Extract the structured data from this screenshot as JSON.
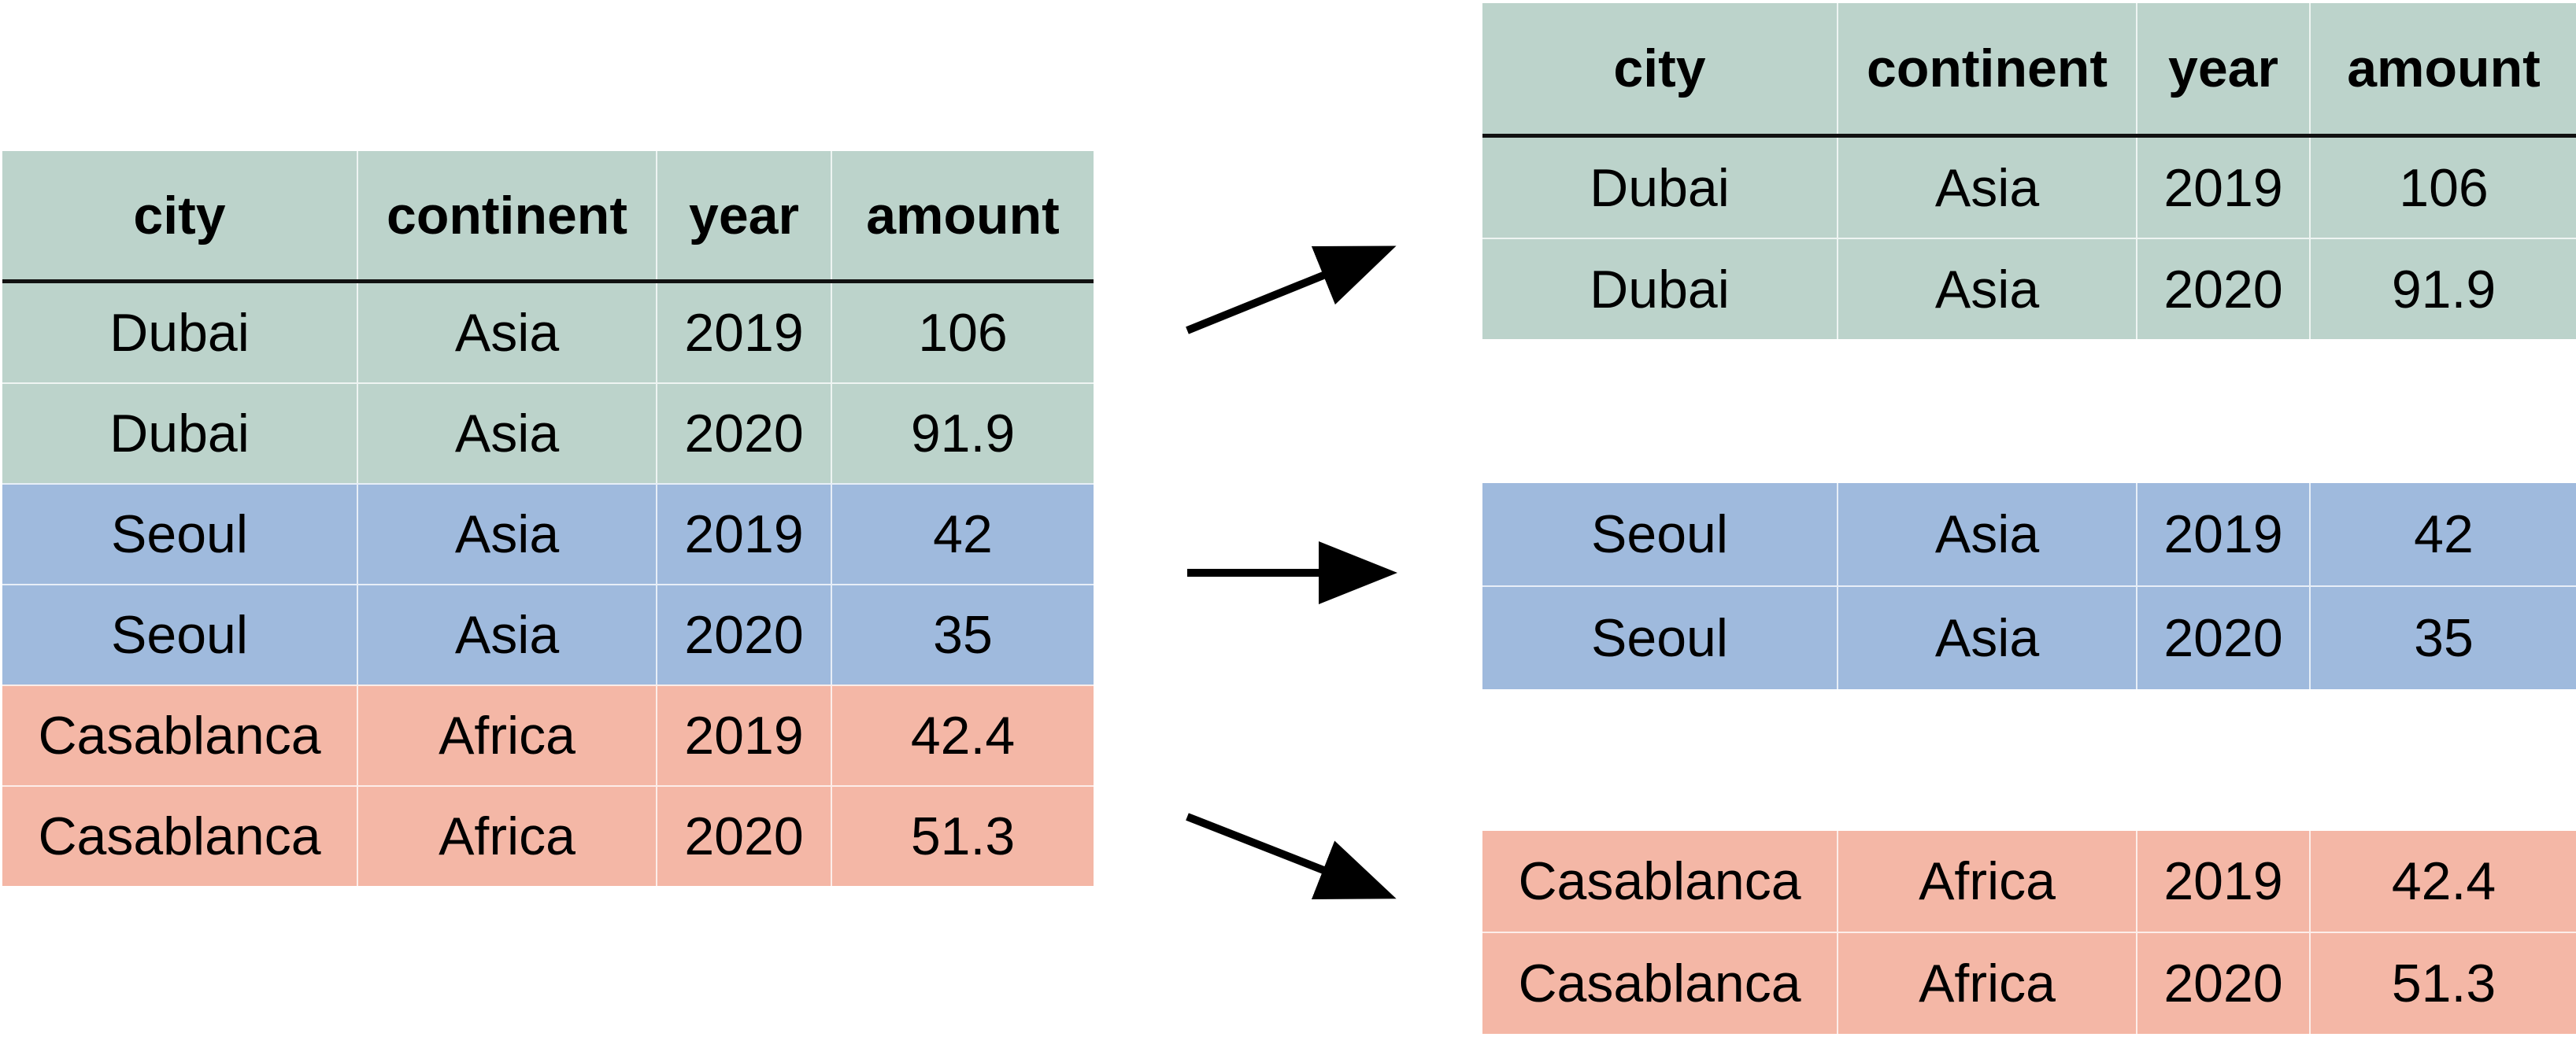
{
  "columns": [
    "city",
    "continent",
    "year",
    "amount"
  ],
  "source_table": {
    "rows": [
      {
        "group": "asia",
        "cells": [
          "Dubai",
          "Asia",
          "2019",
          "106"
        ]
      },
      {
        "group": "asia",
        "cells": [
          "Dubai",
          "Asia",
          "2020",
          "91.9"
        ]
      },
      {
        "group": "seoul",
        "cells": [
          "Seoul",
          "Asia",
          "2019",
          "42"
        ]
      },
      {
        "group": "seoul",
        "cells": [
          "Seoul",
          "Asia",
          "2020",
          "35"
        ]
      },
      {
        "group": "africa",
        "cells": [
          "Casablanca",
          "Africa",
          "2019",
          "42.4"
        ]
      },
      {
        "group": "africa",
        "cells": [
          "Casablanca",
          "Africa",
          "2020",
          "51.3"
        ]
      }
    ]
  },
  "split_tables": [
    {
      "group": "asia",
      "show_header": true,
      "rows": [
        [
          "Dubai",
          "Asia",
          "2019",
          "106"
        ],
        [
          "Dubai",
          "Asia",
          "2020",
          "91.9"
        ]
      ]
    },
    {
      "group": "seoul",
      "show_header": false,
      "rows": [
        [
          "Seoul",
          "Asia",
          "2019",
          "42"
        ],
        [
          "Seoul",
          "Asia",
          "2020",
          "35"
        ]
      ]
    },
    {
      "group": "africa",
      "show_header": false,
      "rows": [
        [
          "Casablanca",
          "Africa",
          "2019",
          "42.4"
        ],
        [
          "Casablanca",
          "Africa",
          "2020",
          "51.3"
        ]
      ]
    }
  ],
  "colors": {
    "asia": "#bcd3cb",
    "seoul": "#9fbadd",
    "africa": "#f4b7a6",
    "arrow": "#000000"
  }
}
